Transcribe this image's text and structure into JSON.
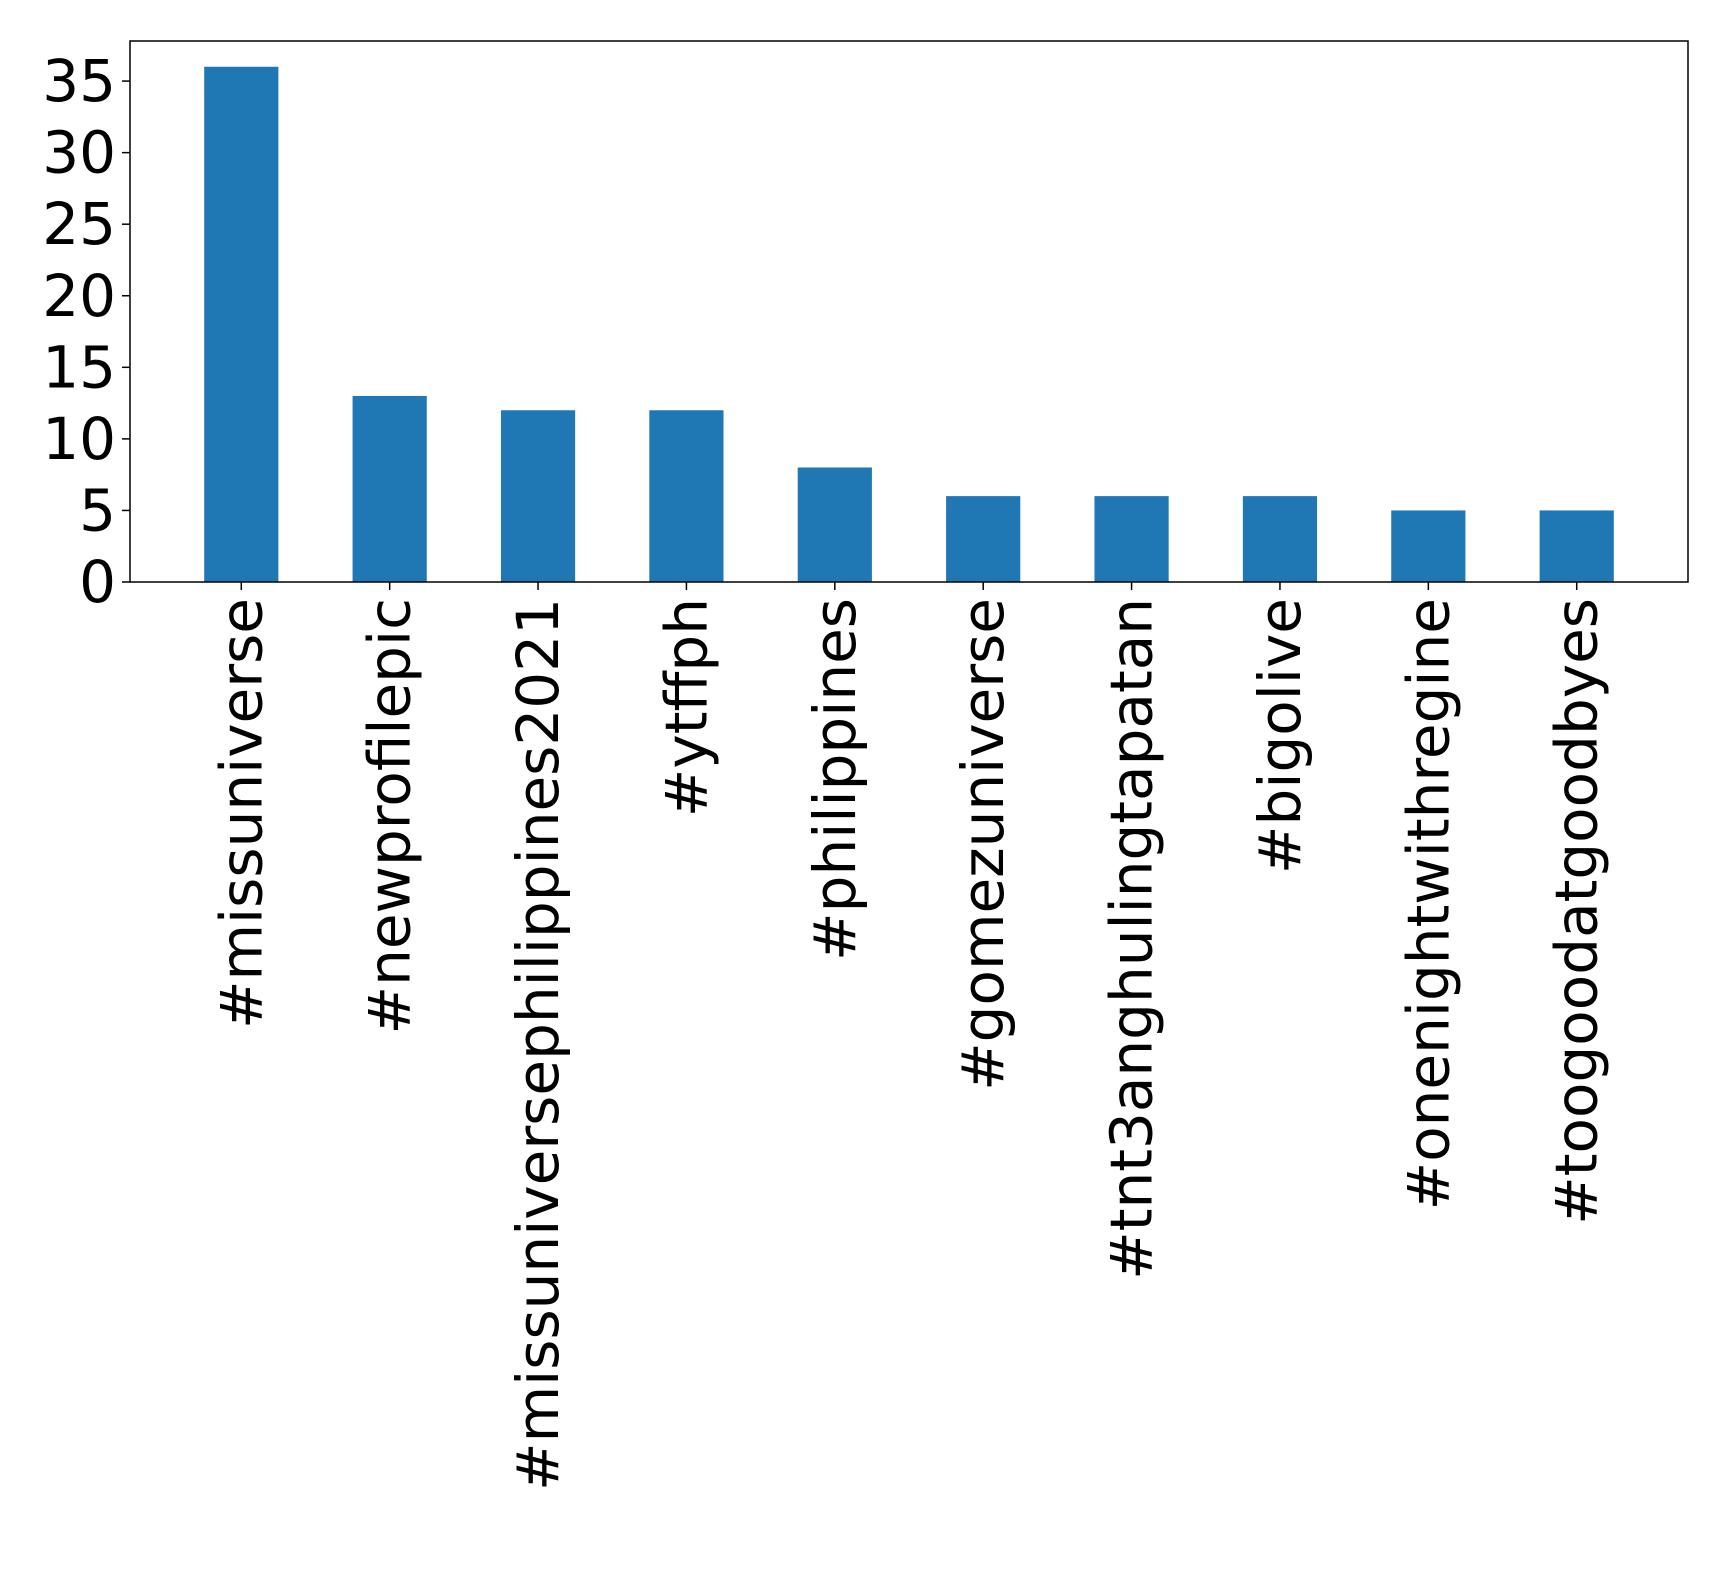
{
  "chart_data": {
    "type": "bar",
    "title": "",
    "xlabel": "",
    "ylabel": "",
    "categories": [
      "#missuniverse",
      "#newprofilepic",
      "#missuniversephilippines2021",
      "#ytffph",
      "#philippines",
      "#gomezuniverse",
      "#tnt3anghulingtapatan",
      "#bigolive",
      "#onenightwithregine",
      "#toogoodatgoodbyes"
    ],
    "values": [
      36,
      13,
      12,
      12,
      8,
      6,
      6,
      6,
      5,
      5
    ],
    "ylim": [
      0,
      37.8
    ],
    "yticks": [
      "0",
      "5",
      "10",
      "15",
      "20",
      "25",
      "30",
      "35"
    ],
    "bar_color": "#1f77b4",
    "grid": false,
    "legend": "none"
  }
}
